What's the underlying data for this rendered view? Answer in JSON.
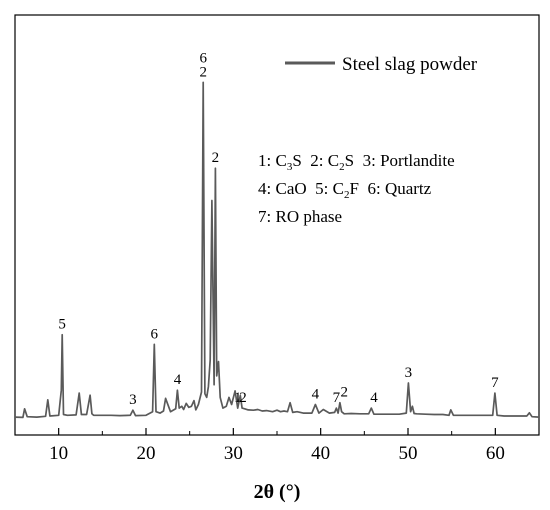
{
  "chart_data": {
    "type": "line",
    "title": "",
    "xlabel": "2θ (°)",
    "ylabel": "",
    "xlim": [
      5,
      65
    ],
    "xticks": [
      10,
      20,
      30,
      40,
      50,
      60
    ],
    "y_ticks_shown": false,
    "grid": false,
    "legend_position": "top-right",
    "series": [
      {
        "name": "Steel slag powder",
        "color": "#5a5a5a",
        "x": [
          5.0,
          5.9,
          6.1,
          6.4,
          7.5,
          8.5,
          8.75,
          9.0,
          10.0,
          10.3,
          10.4,
          10.55,
          11.0,
          12.0,
          12.35,
          12.6,
          13.2,
          13.6,
          13.8,
          14.0,
          15.0,
          16.0,
          17.0,
          18.2,
          18.5,
          18.8,
          20.0,
          20.75,
          20.95,
          21.15,
          21.6,
          22.0,
          22.25,
          22.8,
          23.4,
          23.6,
          23.8,
          24.1,
          24.3,
          24.6,
          24.9,
          25.2,
          25.5,
          25.7,
          26.0,
          26.35,
          26.55,
          26.75,
          26.95,
          27.15,
          27.35,
          27.55,
          27.8,
          27.95,
          28.1,
          28.3,
          28.5,
          28.8,
          29.2,
          29.5,
          29.8,
          30.2,
          30.5,
          30.8,
          31.0,
          31.3,
          31.7,
          32.3,
          32.8,
          33.3,
          33.8,
          34.5,
          35.0,
          35.4,
          35.8,
          36.2,
          36.5,
          36.8,
          37.3,
          38.0,
          39.0,
          39.4,
          39.8,
          40.3,
          41.0,
          41.6,
          41.8,
          42.0,
          42.2,
          42.4,
          42.7,
          43.5,
          44.5,
          45.5,
          45.8,
          46.1,
          47.0,
          48.0,
          49.0,
          49.8,
          50.05,
          50.3,
          50.5,
          50.7,
          51.0,
          52.0,
          53.0,
          54.0,
          54.7,
          54.9,
          55.2,
          56.0,
          57.0,
          58.0,
          59.0,
          59.7,
          59.95,
          60.2,
          61.0,
          62.0,
          63.0,
          63.6,
          63.9,
          64.2,
          65.0
        ],
        "y": [
          2.5,
          2.4,
          4.8,
          2.6,
          2.5,
          2.7,
          7.3,
          2.8,
          3.0,
          10.0,
          25.5,
          3.2,
          3.0,
          3.1,
          9.2,
          3.2,
          3.2,
          8.6,
          3.4,
          3.0,
          3.0,
          3.0,
          2.9,
          3.0,
          4.4,
          2.9,
          3.0,
          4.0,
          22.8,
          4.0,
          3.6,
          4.2,
          7.7,
          4.0,
          4.8,
          10.0,
          5.0,
          5.5,
          4.6,
          6.3,
          5.2,
          5.5,
          7.1,
          4.5,
          6.0,
          9.5,
          96.0,
          9.0,
          8.0,
          11.0,
          18.5,
          63.0,
          11.5,
          72.0,
          14.0,
          18.0,
          8.0,
          5.0,
          5.5,
          8.0,
          6.0,
          9.8,
          5.0,
          8.5,
          5.0,
          4.8,
          4.5,
          4.4,
          4.6,
          4.2,
          4.3,
          4.0,
          4.4,
          4.0,
          4.2,
          4.0,
          6.5,
          3.8,
          4.0,
          3.6,
          3.6,
          6.0,
          3.6,
          4.6,
          3.6,
          3.8,
          5.0,
          3.6,
          6.5,
          4.0,
          3.4,
          3.5,
          3.4,
          3.4,
          5.0,
          3.3,
          3.3,
          3.3,
          3.3,
          3.6,
          12.0,
          4.0,
          5.5,
          3.5,
          3.4,
          3.3,
          3.2,
          3.2,
          3.0,
          4.5,
          3.0,
          3.0,
          3.0,
          3.0,
          3.0,
          3.0,
          9.2,
          3.0,
          2.8,
          2.8,
          2.8,
          2.8,
          3.7,
          2.6,
          2.5
        ]
      }
    ],
    "legend": [
      "Steel slag powder"
    ],
    "peak_annotations": [
      {
        "label": "5",
        "x": 10.4,
        "y": 25.5
      },
      {
        "label": "6",
        "x": 20.95,
        "y": 22.8
      },
      {
        "label": "3",
        "x": 18.5,
        "y": 4.4
      },
      {
        "label": "4",
        "x": 23.6,
        "y": 10.0
      },
      {
        "label": "6",
        "x": 26.55,
        "y": 96.0,
        "stack": 2
      },
      {
        "label": "2",
        "x": 26.55,
        "y": 96.0,
        "stack": 1
      },
      {
        "label": "2",
        "x": 27.95,
        "y": 72.0
      },
      {
        "label": "1",
        "x": 30.5,
        "y": 5.0
      },
      {
        "label": "2",
        "x": 31.1,
        "y": 5.0
      },
      {
        "label": "4",
        "x": 39.4,
        "y": 6.0
      },
      {
        "label": "7",
        "x": 41.8,
        "y": 5.0
      },
      {
        "label": "2",
        "x": 42.7,
        "y": 6.5
      },
      {
        "label": "4",
        "x": 46.1,
        "y": 5.0
      },
      {
        "label": "3",
        "x": 50.05,
        "y": 12.0
      },
      {
        "label": "7",
        "x": 59.95,
        "y": 9.2
      }
    ],
    "phase_key": [
      [
        {
          "id": "1: ",
          "formula": [
            "C",
            "3",
            "S"
          ]
        },
        {
          "id": "2: ",
          "formula": [
            "C",
            "2",
            "S"
          ]
        },
        {
          "id": "3: ",
          "formula": [
            "Portlandite"
          ]
        }
      ],
      [
        {
          "id": "4: ",
          "formula": [
            "CaO"
          ]
        },
        {
          "id": "5: ",
          "formula": [
            "C",
            "2",
            "F"
          ]
        },
        {
          "id": "6: ",
          "formula": [
            "Quartz"
          ]
        }
      ],
      [
        {
          "id": "7: ",
          "formula": [
            "RO phase"
          ]
        }
      ]
    ]
  }
}
